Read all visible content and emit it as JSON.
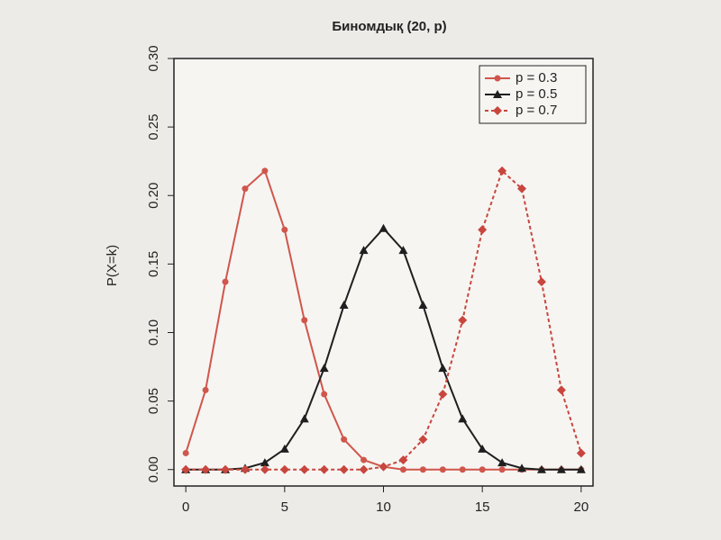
{
  "chart_data": {
    "type": "line",
    "title": "Биномдық  (20, p)",
    "y_label": "P(X=k)",
    "x": [
      0,
      1,
      2,
      3,
      4,
      5,
      6,
      7,
      8,
      9,
      10,
      11,
      12,
      13,
      14,
      15,
      16,
      17,
      18,
      19,
      20
    ],
    "xlim": [
      -0.6,
      20.6
    ],
    "xticks": [
      0,
      5,
      10,
      15,
      20
    ],
    "ylim": [
      -0.012,
      0.3
    ],
    "yticks": [
      {
        "value": 0,
        "label": "0.00"
      },
      {
        "value": 0.05,
        "label": "0.05"
      },
      {
        "value": 0.1,
        "label": "0.10"
      },
      {
        "value": 0.15,
        "label": "0.15"
      },
      {
        "value": 0.2,
        "label": "0.20"
      },
      {
        "value": 0.25,
        "label": "0.25"
      },
      {
        "value": 0.3,
        "label": "0.30"
      }
    ],
    "legend": "top-right",
    "series": [
      {
        "name": "p = 0.3",
        "color": "#d0564c",
        "marker": "circle",
        "dashed": false,
        "values": [
          0.012,
          0.058,
          0.137,
          0.205,
          0.218,
          0.175,
          0.109,
          0.055,
          0.022,
          0.007,
          0.002,
          0,
          0,
          0,
          0,
          0,
          0,
          0,
          0,
          0,
          0
        ]
      },
      {
        "name": "p = 0.5",
        "color": "#1f1f1f",
        "marker": "triangle",
        "dashed": false,
        "values": [
          0,
          0,
          0,
          0.001,
          0.005,
          0.015,
          0.037,
          0.074,
          0.12,
          0.16,
          0.176,
          0.16,
          0.12,
          0.074,
          0.037,
          0.015,
          0.005,
          0.001,
          0,
          0,
          0
        ]
      },
      {
        "name": "p = 0.7",
        "color": "#c8463e",
        "marker": "diamond",
        "dashed": true,
        "values": [
          0,
          0,
          0,
          0,
          0,
          0,
          0,
          0,
          0,
          0,
          0.002,
          0.007,
          0.022,
          0.055,
          0.109,
          0.175,
          0.218,
          0.205,
          0.137,
          0.058,
          0.012
        ]
      }
    ]
  }
}
